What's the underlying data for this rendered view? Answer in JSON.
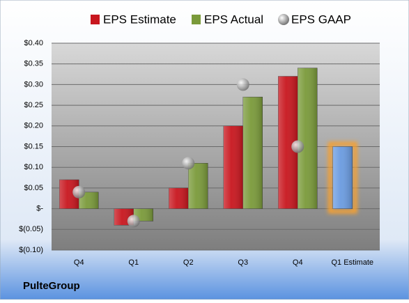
{
  "chart_data": {
    "type": "bar",
    "footer": "PulteGroup",
    "categories": [
      "Q4",
      "Q1",
      "Q2",
      "Q3",
      "Q4",
      "Q1 Estimate"
    ],
    "series": [
      {
        "name": "EPS Estimate",
        "color": "#c8161e",
        "values": [
          0.07,
          -0.04,
          0.05,
          0.2,
          0.32,
          0.15
        ],
        "colors": [
          "#c8161e",
          "#c8161e",
          "#c8161e",
          "#c8161e",
          "#c8161e",
          "#6a9be0"
        ]
      },
      {
        "name": "EPS Actual",
        "color": "#7a9a3a",
        "values": [
          0.04,
          -0.03,
          0.11,
          0.27,
          0.34,
          null
        ]
      },
      {
        "name": "EPS GAAP",
        "color": "#a8a8a8",
        "marker": "circle",
        "values": [
          0.04,
          -0.03,
          0.11,
          0.3,
          0.15,
          null
        ]
      }
    ],
    "ylim": [
      -0.1,
      0.4
    ],
    "yticks": [
      {
        "value": -0.1,
        "label": "$(0.10)"
      },
      {
        "value": -0.05,
        "label": "$(0.05)"
      },
      {
        "value": 0,
        "label": "$-"
      },
      {
        "value": 0.05,
        "label": "$0.05"
      },
      {
        "value": 0.1,
        "label": "$0.10"
      },
      {
        "value": 0.15,
        "label": "$0.15"
      },
      {
        "value": 0.2,
        "label": "$0.20"
      },
      {
        "value": 0.25,
        "label": "$0.25"
      },
      {
        "value": 0.3,
        "label": "$0.30"
      },
      {
        "value": 0.35,
        "label": "$0.35"
      },
      {
        "value": 0.4,
        "label": "$0.40"
      }
    ],
    "grid": true
  }
}
